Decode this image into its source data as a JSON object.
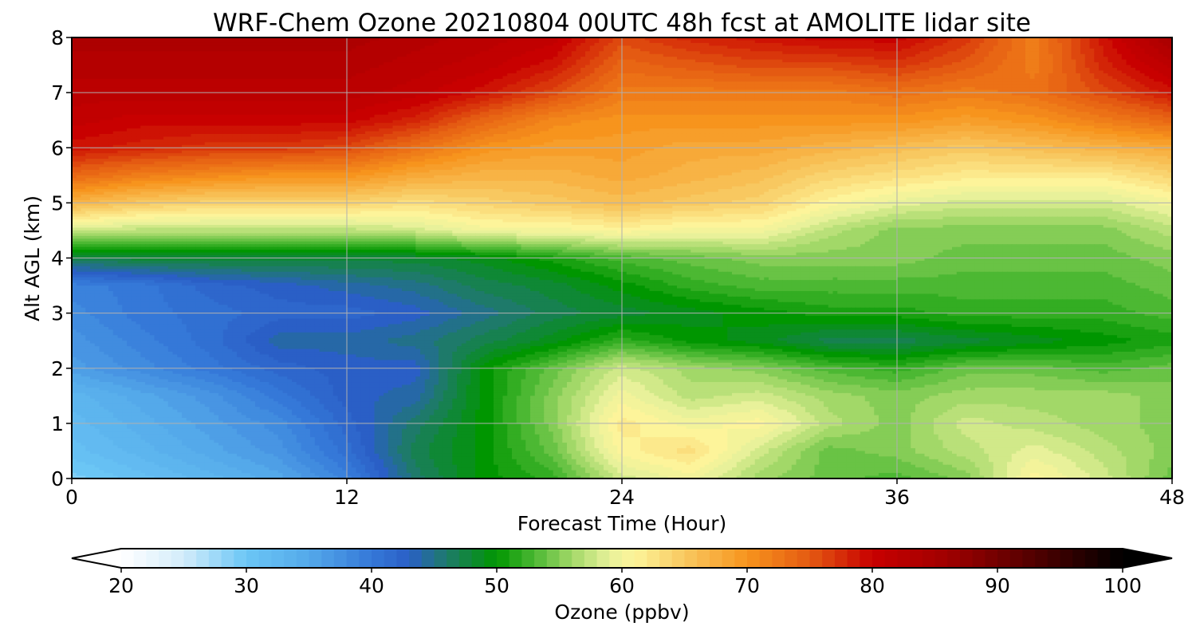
{
  "chart_data": {
    "type": "heatmap",
    "title": "WRF-Chem Ozone  20210804 00UTC 48h fcst at AMOLITE lidar site",
    "xlabel": "Forecast Time (Hour)",
    "ylabel": "Alt AGL (km)",
    "xlim": [
      0,
      48
    ],
    "ylim": [
      0,
      8
    ],
    "xticks": [
      "0",
      "12",
      "24",
      "36",
      "48"
    ],
    "yticks": [
      "0",
      "1",
      "2",
      "3",
      "4",
      "5",
      "6",
      "7",
      "8"
    ],
    "grid": true,
    "x_hours": [
      0,
      3,
      6,
      9,
      12,
      15,
      18,
      21,
      24,
      27,
      30,
      33,
      36,
      39,
      42,
      45,
      48
    ],
    "y_km": [
      0,
      0.5,
      1,
      1.5,
      2,
      2.5,
      3,
      3.5,
      4,
      4.5,
      5,
      5.5,
      6,
      6.5,
      7,
      7.5,
      8
    ],
    "z_ppbv": [
      [
        29,
        31,
        33,
        35,
        39,
        46,
        50,
        52,
        58,
        60,
        56,
        54,
        53,
        55,
        61,
        58,
        54
      ],
      [
        31,
        33,
        35,
        37,
        41,
        47,
        50,
        54,
        61,
        63,
        58,
        54,
        55,
        57,
        59,
        57,
        55
      ],
      [
        32,
        34,
        36,
        38,
        42,
        46,
        50,
        55,
        62,
        60,
        61,
        57,
        55,
        58,
        57,
        56,
        55
      ],
      [
        33,
        35,
        37,
        40,
        43,
        44,
        50,
        55,
        60,
        57,
        58,
        56,
        55,
        56,
        56,
        56,
        55
      ],
      [
        36,
        38,
        40,
        42,
        43,
        43,
        50,
        54,
        58,
        56,
        55,
        53,
        52,
        54,
        54,
        53,
        54
      ],
      [
        37,
        39,
        41,
        44,
        44,
        45,
        47,
        49,
        52,
        50,
        49,
        47,
        47,
        48,
        49,
        50,
        51
      ],
      [
        38,
        40,
        41,
        42,
        42,
        43,
        45,
        47,
        48,
        49,
        50,
        51,
        51,
        52,
        52,
        52,
        53
      ],
      [
        39,
        40,
        42,
        43,
        44,
        45,
        47,
        48,
        50,
        52,
        53,
        53,
        53,
        53,
        53,
        53,
        54
      ],
      [
        47,
        48,
        48,
        48,
        48,
        48,
        49,
        51,
        53,
        54,
        55,
        55,
        55,
        54,
        54,
        54,
        55
      ],
      [
        58,
        57,
        57,
        57,
        57,
        58,
        60,
        60,
        61,
        60,
        60,
        57,
        55,
        55,
        55,
        55,
        57
      ],
      [
        67,
        65,
        64,
        64,
        64,
        63,
        64,
        65,
        66,
        65,
        64,
        61,
        59,
        58,
        58,
        58,
        60
      ],
      [
        74,
        72,
        71,
        70,
        70,
        68,
        67,
        67,
        68,
        67,
        66,
        64,
        63,
        62,
        62,
        62,
        64
      ],
      [
        79,
        78,
        77,
        77,
        76,
        73,
        70,
        69,
        69,
        68,
        68,
        67,
        66,
        65,
        66,
        67,
        68
      ],
      [
        81,
        80,
        80,
        80,
        80,
        78,
        74,
        71,
        70,
        70,
        70,
        70,
        70,
        69,
        70,
        72,
        74
      ],
      [
        82,
        82,
        82,
        82,
        82,
        81,
        79,
        76,
        72,
        72,
        72,
        72,
        73,
        72,
        73,
        76,
        79
      ],
      [
        83,
        83,
        83,
        83,
        83,
        82,
        81,
        79,
        74,
        75,
        76,
        76,
        77,
        75,
        72,
        78,
        82
      ],
      [
        84,
        84,
        84,
        84,
        84,
        83,
        82,
        81,
        76,
        78,
        79,
        80,
        80,
        77,
        72,
        79,
        85
      ]
    ],
    "colorbar": {
      "label": "Ozone  (ppbv)",
      "min": 20,
      "max": 100,
      "ticks": [
        "20",
        "30",
        "40",
        "50",
        "60",
        "70",
        "80",
        "90",
        "100"
      ],
      "extend": "both",
      "stops": [
        {
          "v": 20,
          "c": "#ffffff"
        },
        {
          "v": 25,
          "c": "#d2ecfb"
        },
        {
          "v": 30,
          "c": "#6bc6f5"
        },
        {
          "v": 35,
          "c": "#54a9ea"
        },
        {
          "v": 40,
          "c": "#3578d8"
        },
        {
          "v": 43,
          "c": "#2a5fc6"
        },
        {
          "v": 46,
          "c": "#1e7a6a"
        },
        {
          "v": 50,
          "c": "#009600"
        },
        {
          "v": 53,
          "c": "#4cb833"
        },
        {
          "v": 56,
          "c": "#a2d868"
        },
        {
          "v": 59,
          "c": "#e8f19a"
        },
        {
          "v": 61,
          "c": "#fdf49a"
        },
        {
          "v": 65,
          "c": "#f8c860"
        },
        {
          "v": 70,
          "c": "#f7941d"
        },
        {
          "v": 75,
          "c": "#e45a12"
        },
        {
          "v": 80,
          "c": "#c80000"
        },
        {
          "v": 86,
          "c": "#a00000"
        },
        {
          "v": 92,
          "c": "#5c0000"
        },
        {
          "v": 100,
          "c": "#000000"
        }
      ]
    }
  }
}
